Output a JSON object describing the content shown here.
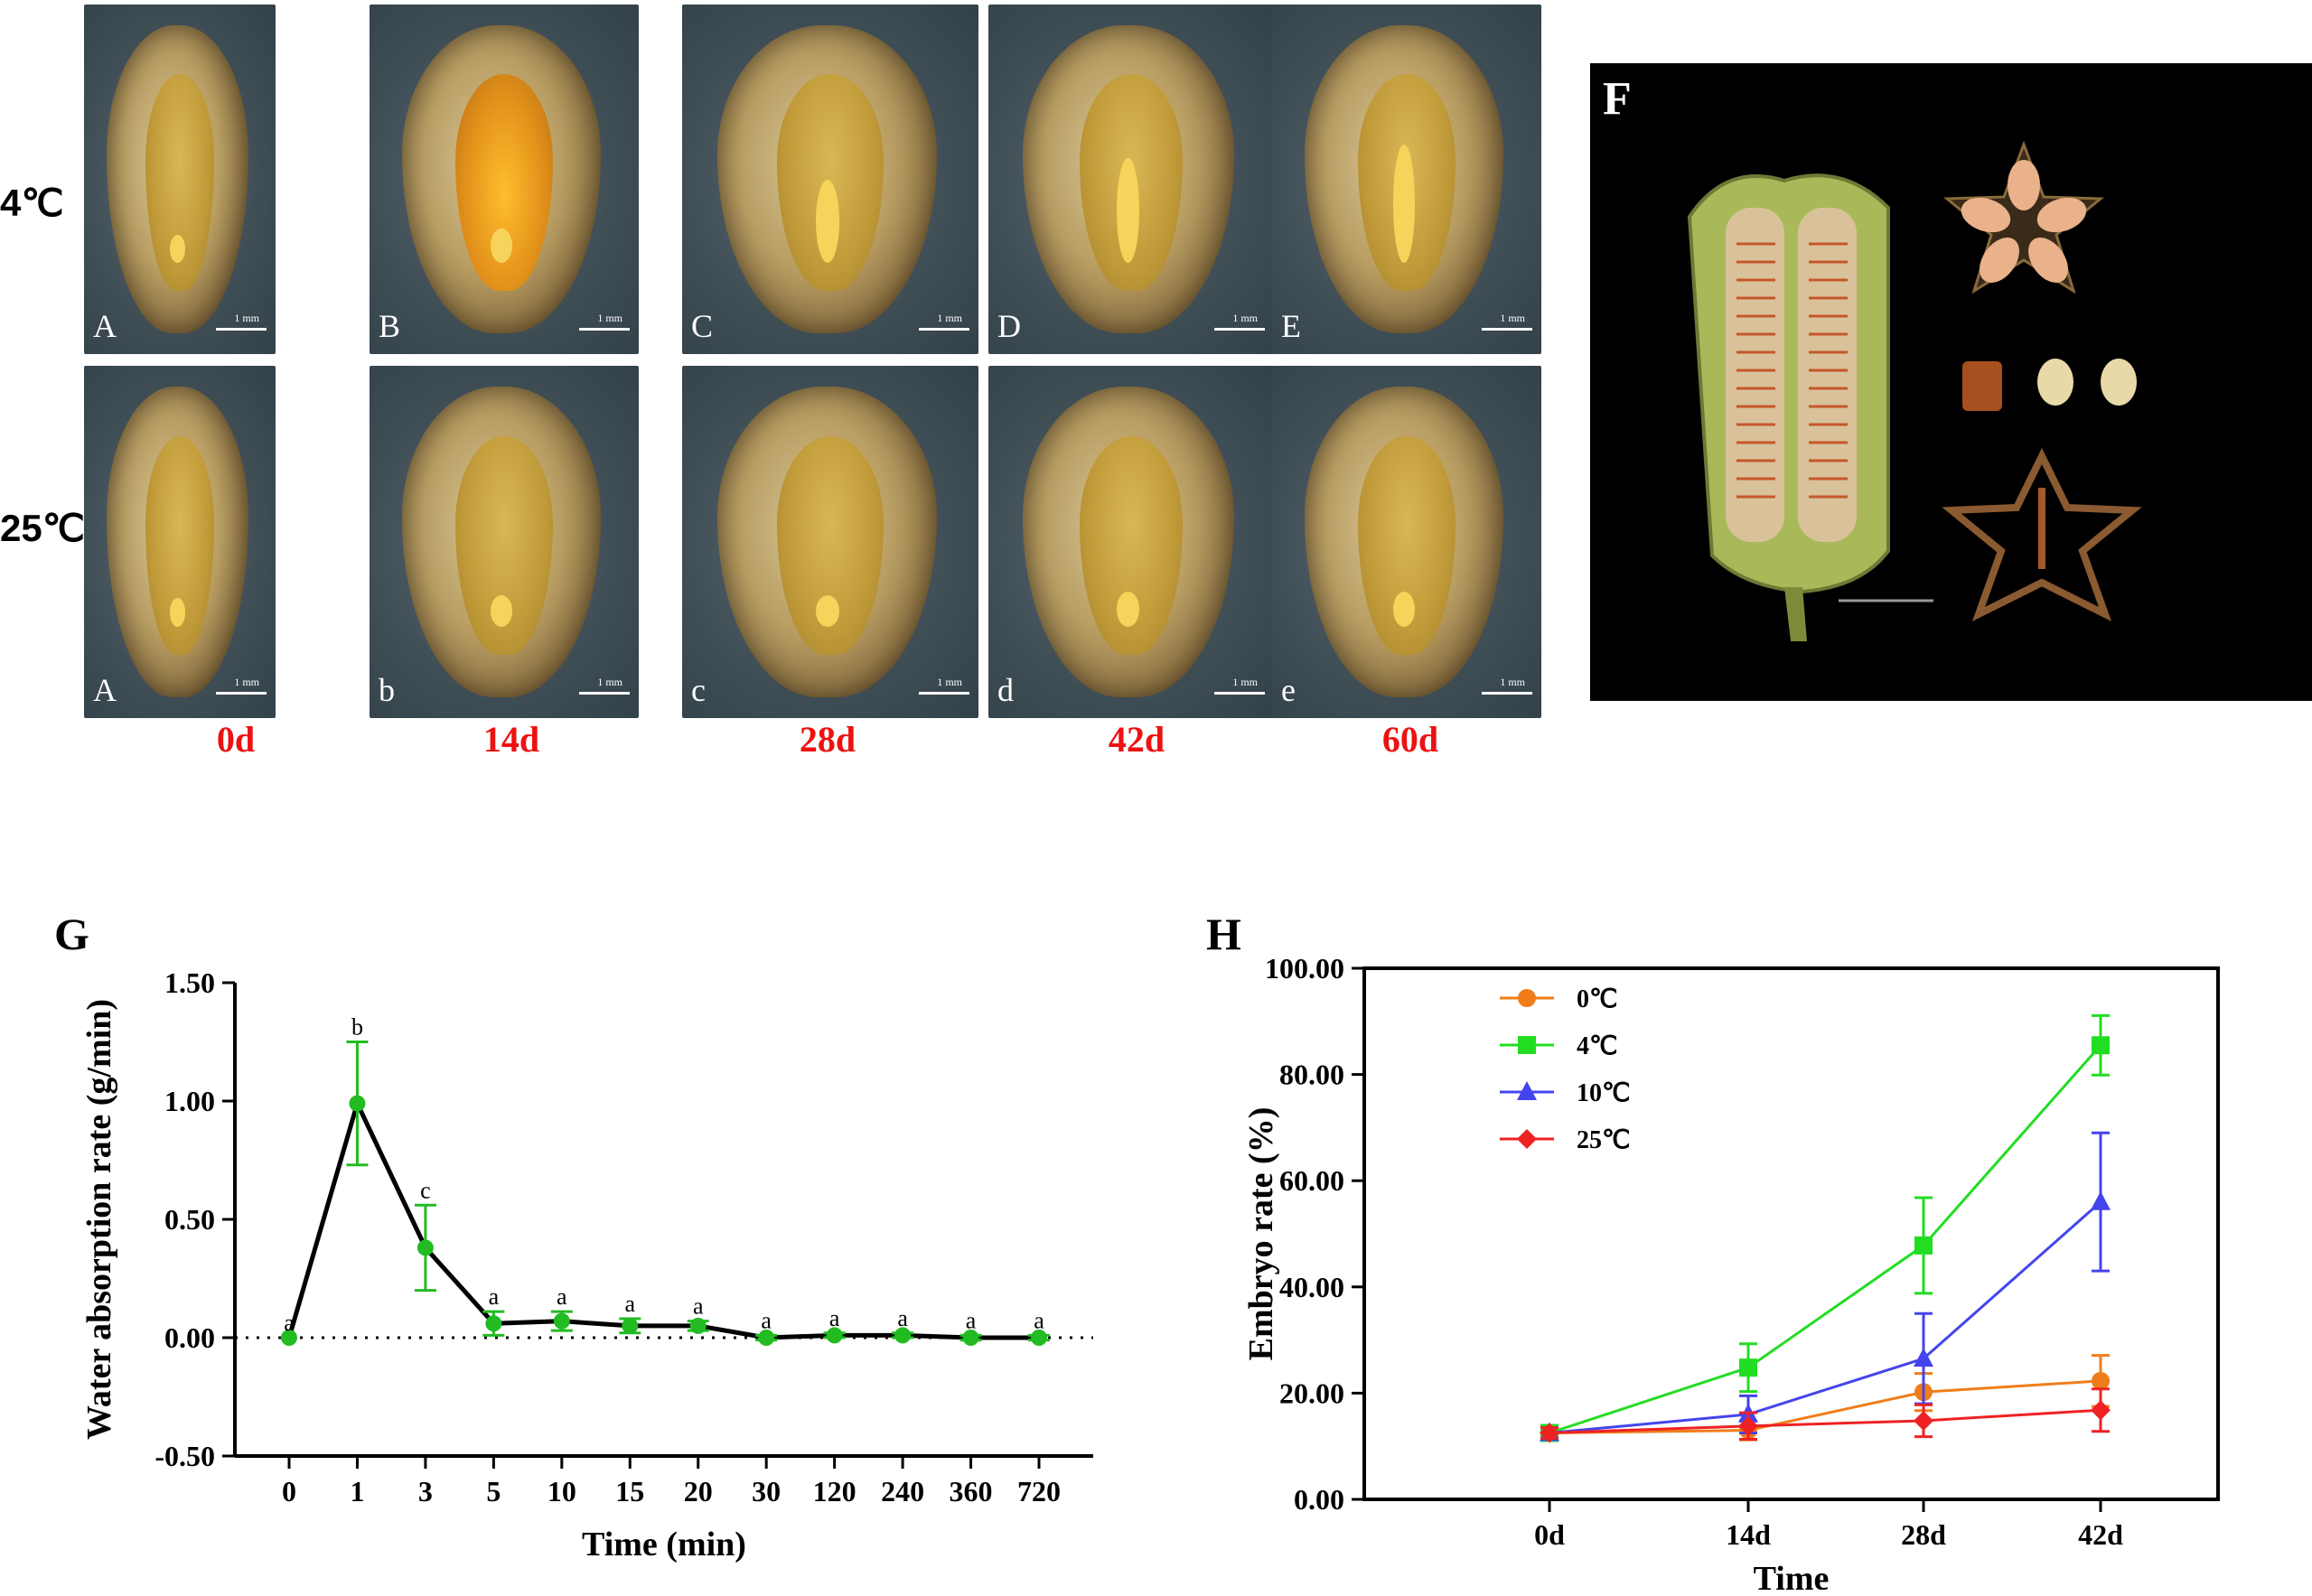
{
  "row_labels": [
    "4℃",
    "25℃"
  ],
  "day_labels": [
    "0d",
    "14d",
    "28d",
    "42d",
    "60d"
  ],
  "photo_letters": {
    "top": [
      "A",
      "B",
      "C",
      "D",
      "E"
    ],
    "bottom": [
      "A",
      "b",
      "c",
      "d",
      "e"
    ]
  },
  "scale_label": "1 mm",
  "panel_f": {
    "letter": "F"
  },
  "colors": {
    "day_label": "#ee1111",
    "g_points": "#22bb22"
  },
  "chart_data": [
    {
      "panel": "G",
      "type": "line",
      "title": "",
      "xlabel": "Time (min)",
      "ylabel": "Water absorption rate (g/min)",
      "categories": [
        "0",
        "1",
        "3",
        "5",
        "10",
        "15",
        "20",
        "30",
        "120",
        "240",
        "360",
        "720"
      ],
      "values": [
        0.0,
        0.99,
        0.38,
        0.06,
        0.07,
        0.05,
        0.05,
        0.0,
        0.01,
        0.01,
        0.0,
        0.0
      ],
      "errors": [
        0.0,
        0.26,
        0.18,
        0.05,
        0.04,
        0.03,
        0.02,
        0.01,
        0.01,
        0.01,
        0.01,
        0.01
      ],
      "significance": [
        "a",
        "b",
        "c",
        "a",
        "a",
        "a",
        "a",
        "a",
        "a",
        "a",
        "a",
        "a"
      ],
      "ylim": [
        -0.5,
        1.5
      ],
      "yticks": [
        "-0.50",
        "0.00",
        "0.50",
        "1.00",
        "1.50"
      ],
      "reference_line": 0.0
    },
    {
      "panel": "H",
      "type": "line",
      "title": "",
      "xlabel": "Time",
      "ylabel": "Embryo rate (%)",
      "categories": [
        "0d",
        "14d",
        "28d",
        "42d"
      ],
      "ylim": [
        0,
        100
      ],
      "yticks": [
        "0.00",
        "20.00",
        "40.00",
        "60.00",
        "80.00",
        "100.00"
      ],
      "legend_position": "top-left",
      "series": [
        {
          "name": "0℃",
          "color": "#f07d1a",
          "marker": "circle",
          "values": [
            12.5,
            13.0,
            20.2,
            22.3
          ],
          "errors": [
            1.0,
            1.8,
            3.5,
            4.8
          ]
        },
        {
          "name": "4℃",
          "color": "#22dd22",
          "marker": "square",
          "values": [
            12.5,
            24.8,
            47.8,
            85.5
          ],
          "errors": [
            1.0,
            4.5,
            9.0,
            5.6
          ]
        },
        {
          "name": "10℃",
          "color": "#4444ee",
          "marker": "triangle",
          "values": [
            12.5,
            16.0,
            26.5,
            56.0
          ],
          "errors": [
            1.0,
            3.5,
            8.5,
            13.0
          ]
        },
        {
          "name": "25℃",
          "color": "#ee2222",
          "marker": "diamond",
          "values": [
            12.5,
            13.8,
            14.8,
            16.8
          ],
          "errors": [
            1.0,
            2.5,
            3.0,
            4.0
          ]
        }
      ]
    }
  ]
}
